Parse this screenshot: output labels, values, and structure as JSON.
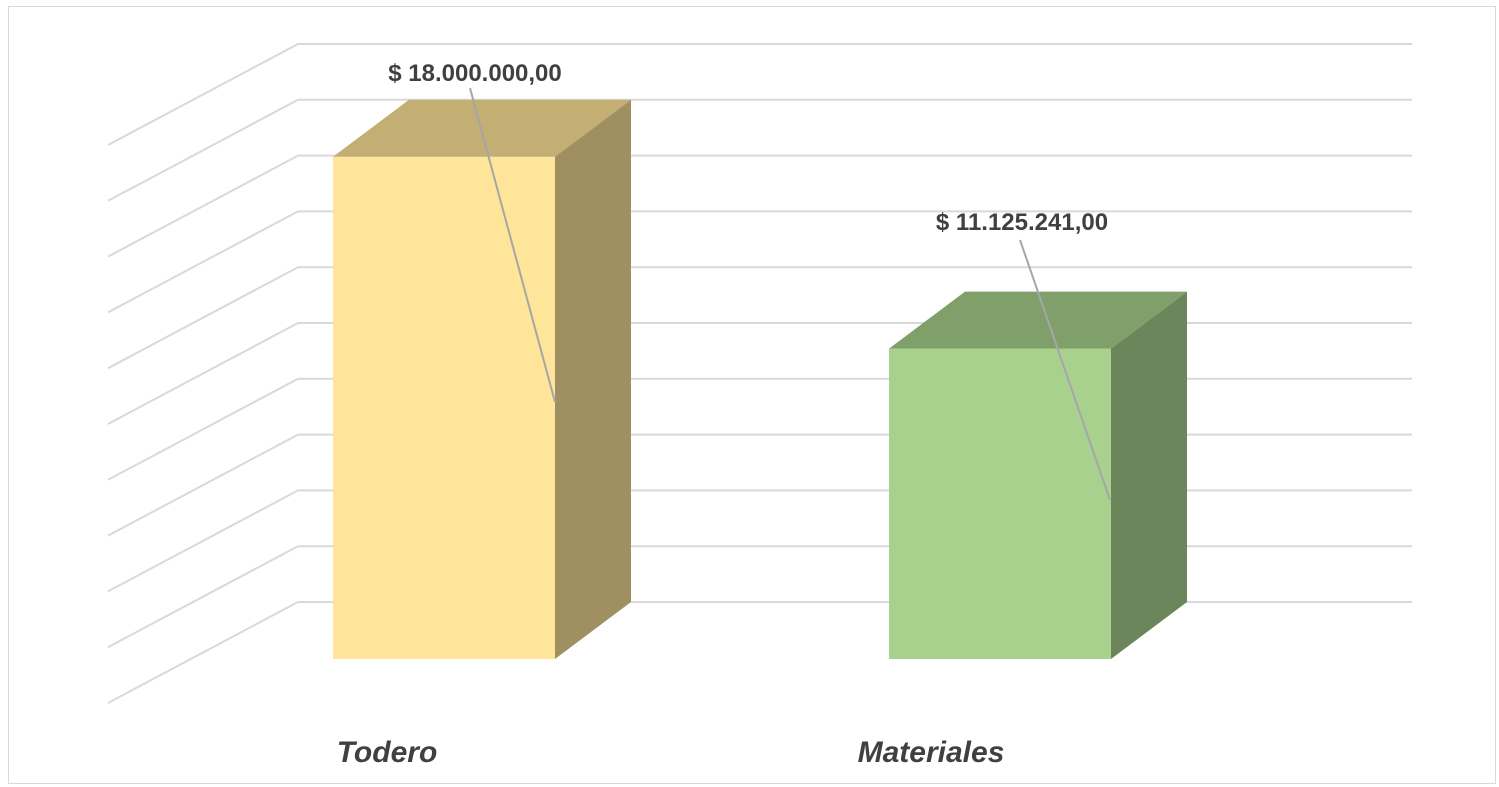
{
  "chart_data": {
    "type": "bar",
    "style": "3d-column",
    "categories": [
      "Todero",
      "Materiales"
    ],
    "values": [
      18000000,
      11125241
    ],
    "data_labels": [
      "$ 18.000.000,00",
      "$ 11.125.241,00"
    ],
    "ylim": [
      0,
      20000000
    ],
    "grid": true,
    "legend": "none",
    "colors": {
      "front": [
        "#FEE599",
        "#A9D18E"
      ],
      "top": [
        "#C3AF73",
        "#80A06B"
      ],
      "side": [
        "#A08F60",
        "#6B865A"
      ],
      "grid": "#d9d9d9",
      "leader": "#a6a6a6"
    }
  }
}
